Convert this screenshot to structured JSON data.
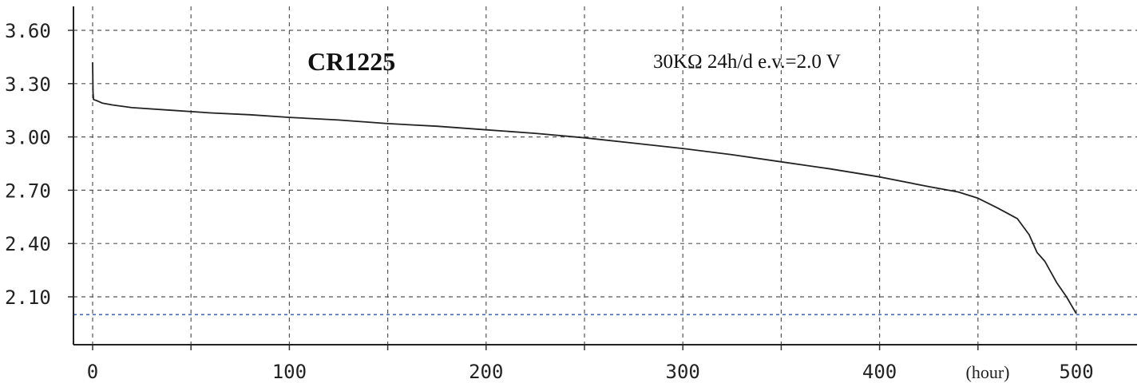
{
  "chart_data": {
    "type": "line",
    "title": "CR1225",
    "subtitle": "30KΩ 24h/d e.v.=2.0 V",
    "x_unit_label": "(hour)",
    "xlim": [
      0,
      500
    ],
    "ylim": [
      2.0,
      3.62
    ],
    "x_tick_labels": [
      "0",
      "100",
      "200",
      "300",
      "400",
      "500"
    ],
    "x_tick_values": [
      0,
      100,
      200,
      300,
      400,
      500
    ],
    "y_tick_labels": [
      "3.60",
      "3.30",
      "3.00",
      "2.70",
      "2.40",
      "2.10"
    ],
    "y_tick_values": [
      3.6,
      3.3,
      3.0,
      2.7,
      2.4,
      2.1
    ],
    "grid": true,
    "cutoff_line": {
      "y": 2.0,
      "color": "#4a6aa8"
    },
    "series": [
      {
        "color": "#222222",
        "x": [
          0,
          0.2,
          0.5,
          2,
          5,
          10,
          20,
          40,
          60,
          80,
          100,
          125,
          150,
          175,
          200,
          225,
          250,
          275,
          300,
          325,
          350,
          375,
          400,
          425,
          440,
          450,
          460,
          470,
          476,
          480,
          484,
          490,
          495,
          500
        ],
        "y": [
          3.42,
          3.25,
          3.21,
          3.205,
          3.19,
          3.18,
          3.165,
          3.15,
          3.135,
          3.125,
          3.11,
          3.095,
          3.075,
          3.06,
          3.04,
          3.02,
          2.995,
          2.965,
          2.935,
          2.9,
          2.86,
          2.82,
          2.775,
          2.72,
          2.69,
          2.655,
          2.6,
          2.54,
          2.45,
          2.35,
          2.3,
          2.18,
          2.1,
          2.005
        ]
      }
    ]
  }
}
